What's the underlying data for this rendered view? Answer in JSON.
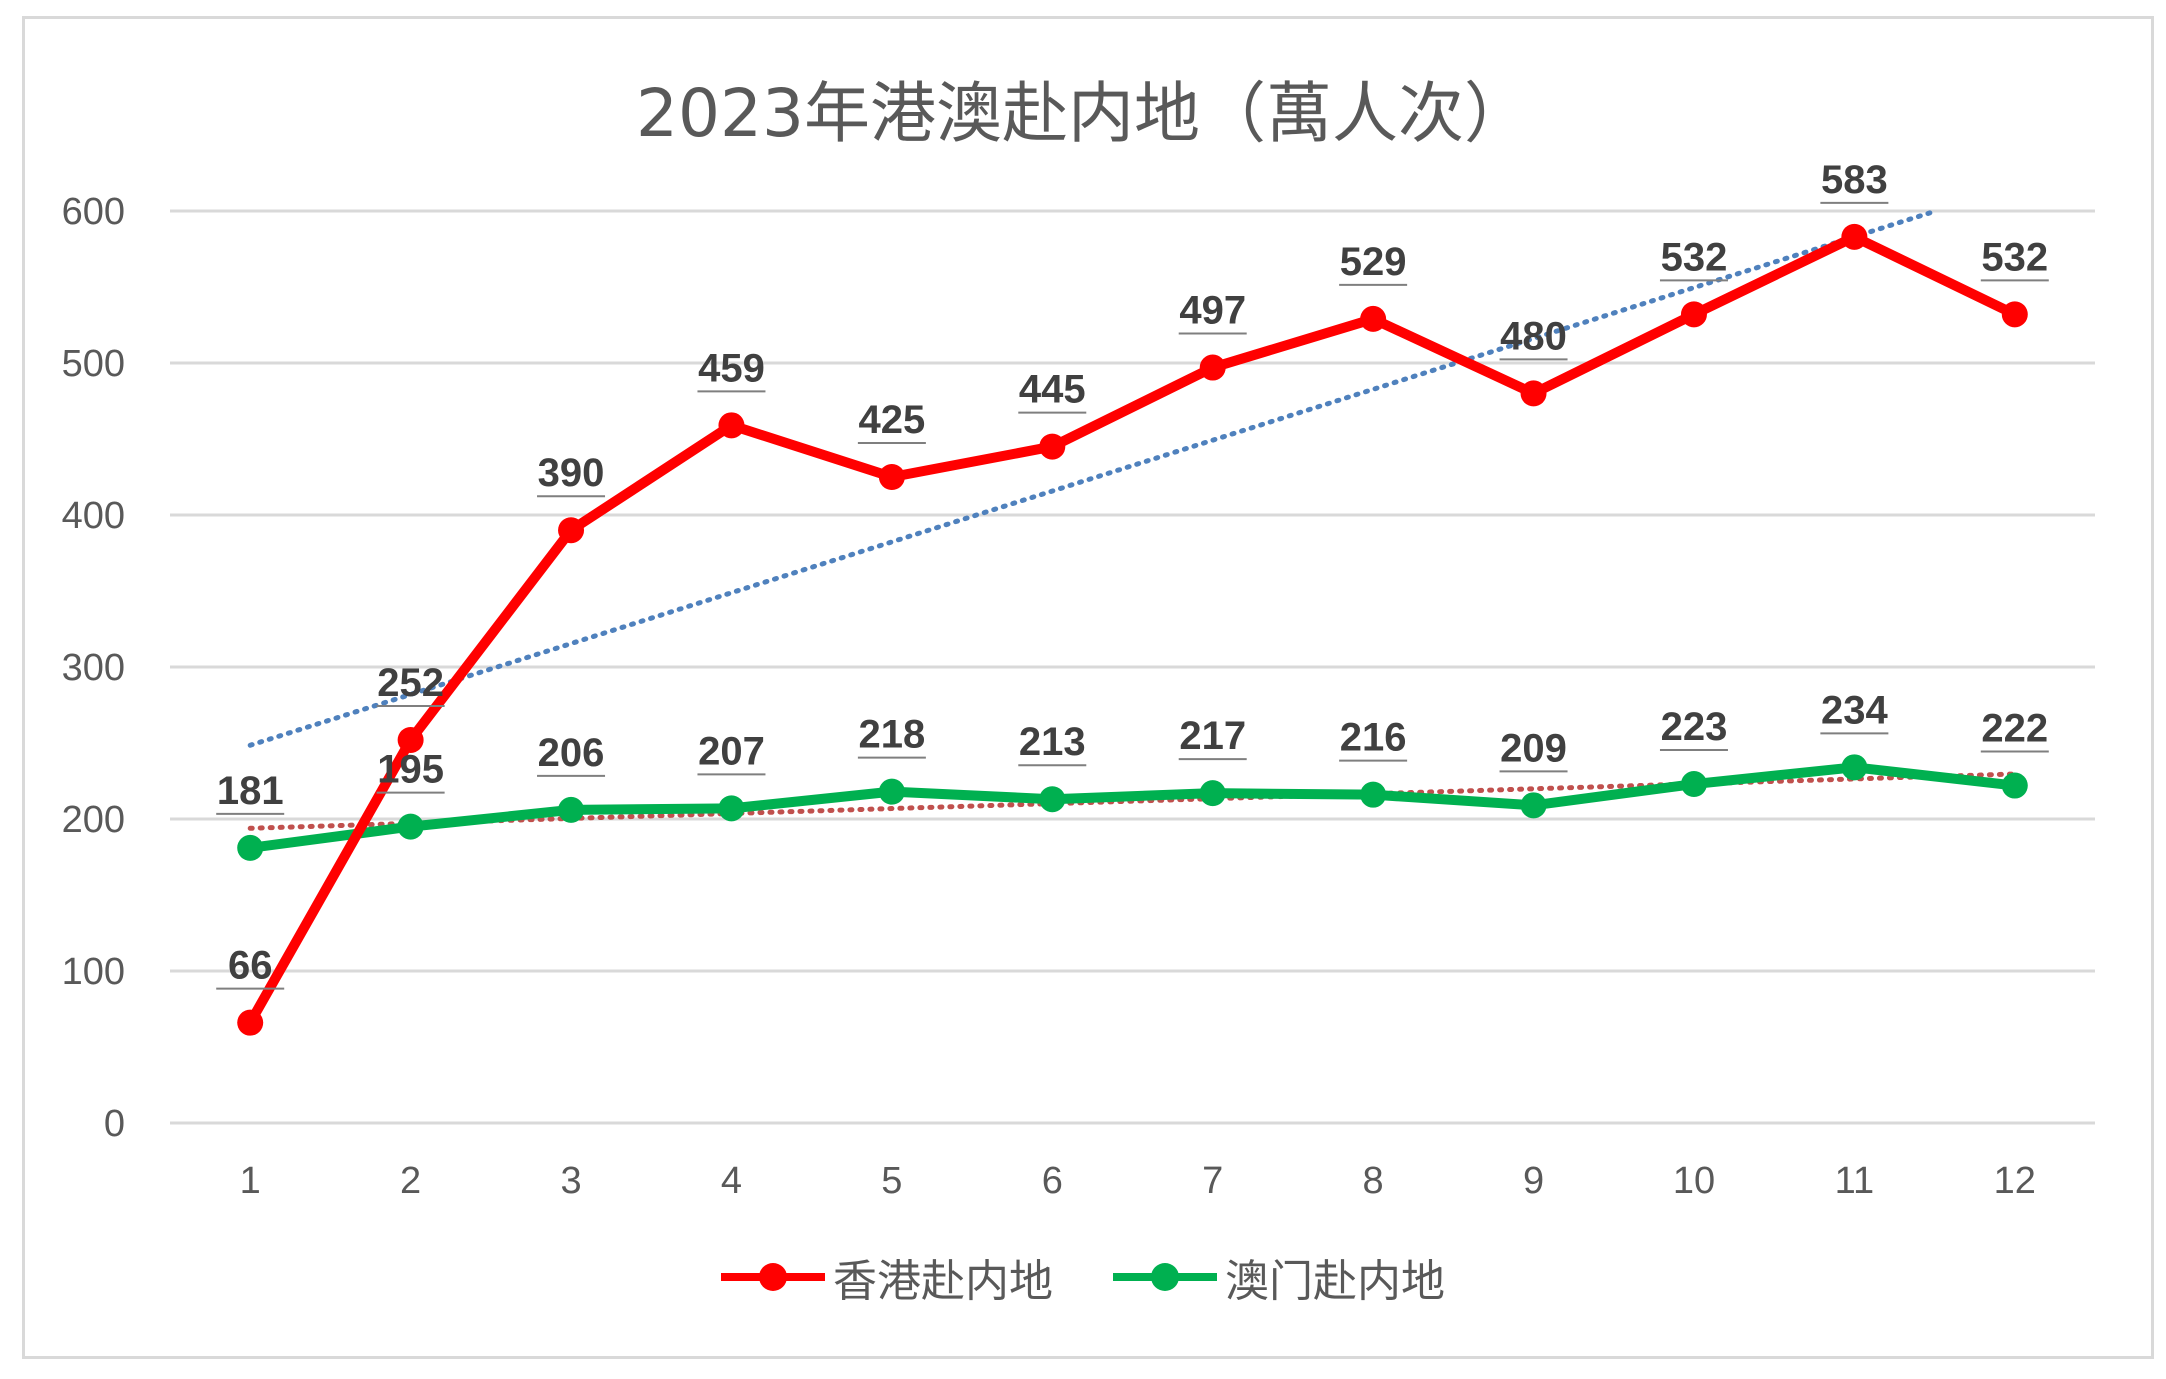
{
  "chart_data": {
    "type": "line",
    "title": "2023年港澳赴内地（萬人次）",
    "categories": [
      "1",
      "2",
      "3",
      "4",
      "5",
      "6",
      "7",
      "8",
      "9",
      "10",
      "11",
      "12"
    ],
    "ylim": [
      0,
      600
    ],
    "yticks": [
      "0",
      "100",
      "200",
      "300",
      "400",
      "500",
      "600"
    ],
    "grid": true,
    "legend_position": "bottom",
    "data_labels": true,
    "series": [
      {
        "name": "香港赴内地",
        "values": [
          66,
          252,
          390,
          459,
          425,
          445,
          497,
          529,
          480,
          532,
          583,
          532
        ],
        "color": "#ff0000",
        "trendline": {
          "type": "linear",
          "style": "dotted",
          "color": "#4f81bd"
        }
      },
      {
        "name": "澳门赴内地",
        "values": [
          181,
          195,
          206,
          207,
          218,
          213,
          217,
          216,
          209,
          223,
          234,
          222
        ],
        "color": "#00b050",
        "trendline": {
          "type": "linear",
          "style": "dotted",
          "color": "#c0504d"
        }
      }
    ]
  }
}
